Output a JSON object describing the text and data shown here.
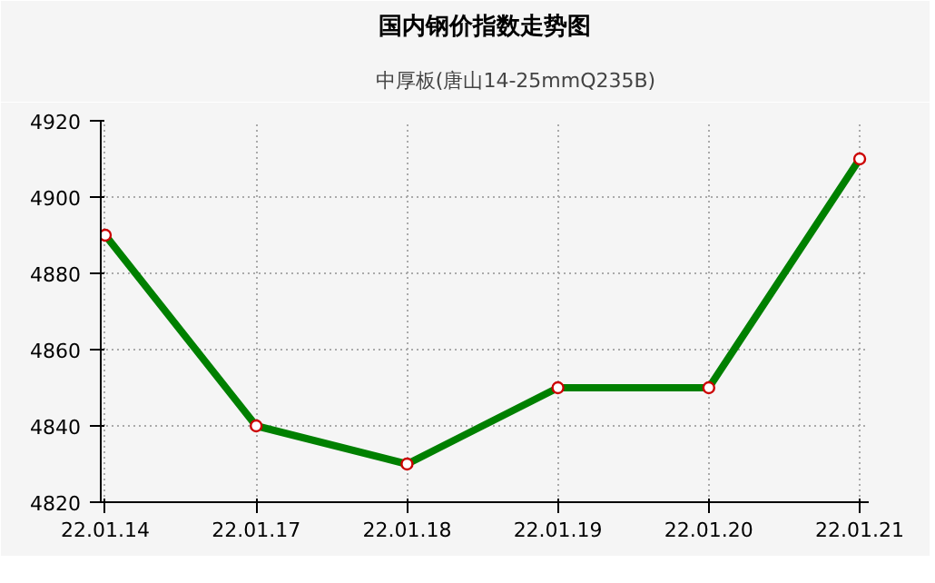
{
  "chart_data": {
    "type": "line",
    "title": "国内钢价指数走势图",
    "categories": [
      "22.01.14",
      "22.01.17",
      "22.01.18",
      "22.01.19",
      "22.01.20",
      "22.01.21"
    ],
    "series": [
      {
        "name": "中厚板(唐山14-25mmQ235B)",
        "color": "#008000",
        "values": [
          4890,
          4840,
          4830,
          4850,
          4850,
          4910
        ]
      }
    ],
    "ylim": [
      4820,
      4920
    ],
    "yticks": [
      4820,
      4840,
      4860,
      4880,
      4900,
      4920
    ],
    "grid": true,
    "legend": "top",
    "marker": "circle",
    "line_style": "solid"
  }
}
